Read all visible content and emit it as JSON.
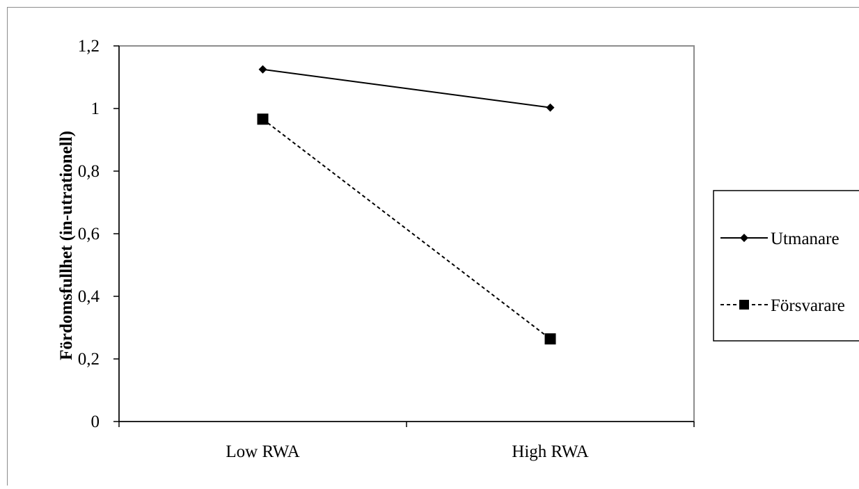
{
  "chart_data": {
    "type": "line",
    "title": "",
    "xlabel": "",
    "ylabel": "Fördomsfullhet (in-utrationell)",
    "categories": [
      "Low RWA",
      "High RWA"
    ],
    "ylim": [
      0,
      1.2
    ],
    "yticks": [
      "0",
      "0,2",
      "0,4",
      "0,6",
      "0,8",
      "1",
      "1,2"
    ],
    "grid": false,
    "legend_position": "right",
    "series": [
      {
        "name": "Utmanare",
        "values": [
          1.125,
          1.003
        ],
        "line": "solid",
        "marker": "diamond",
        "color": "#000000"
      },
      {
        "name": "Försvarare",
        "values": [
          0.966,
          0.264
        ],
        "line": "dashed",
        "marker": "square",
        "color": "#000000"
      }
    ]
  }
}
